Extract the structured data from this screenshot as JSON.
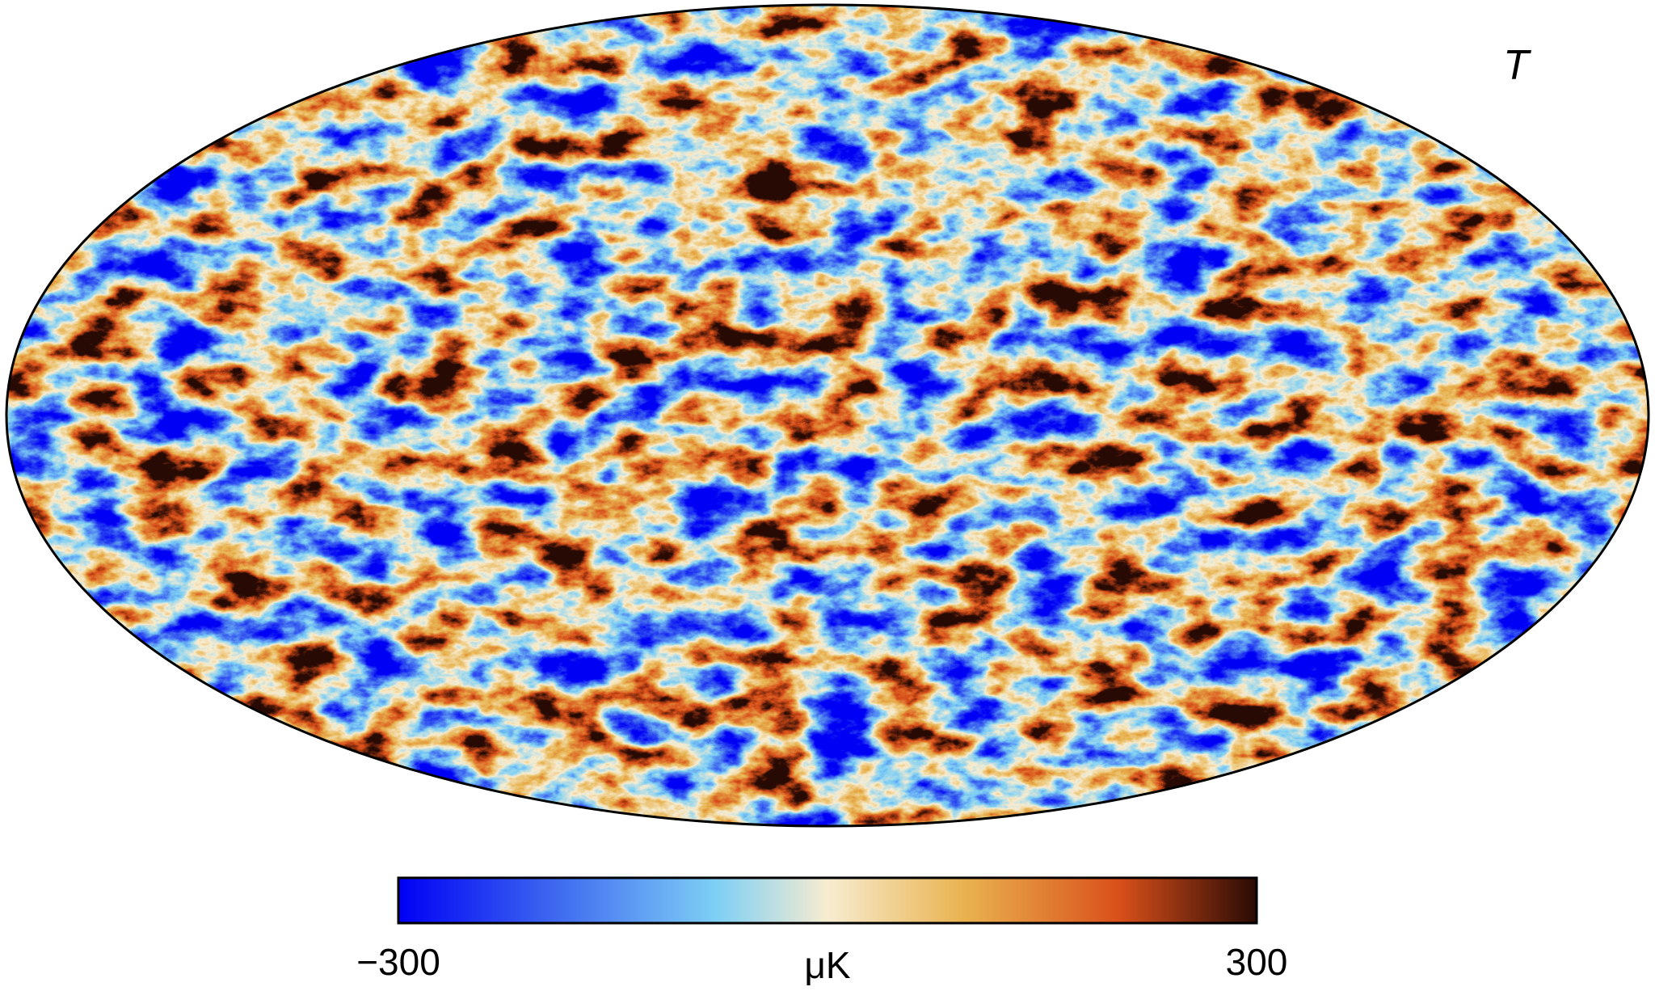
{
  "chart_data": {
    "type": "heatmap",
    "projection": "mollweide",
    "map_label": "T",
    "colorbar": {
      "min": -300,
      "max": 300,
      "min_label": "−300",
      "max_label": "300",
      "unit": "μK",
      "colors": [
        "#0000f5",
        "#3a62f0",
        "#7ecff5",
        "#f7ecd0",
        "#e9b24e",
        "#d9501a",
        "#2a0a05"
      ]
    },
    "grid": false
  }
}
